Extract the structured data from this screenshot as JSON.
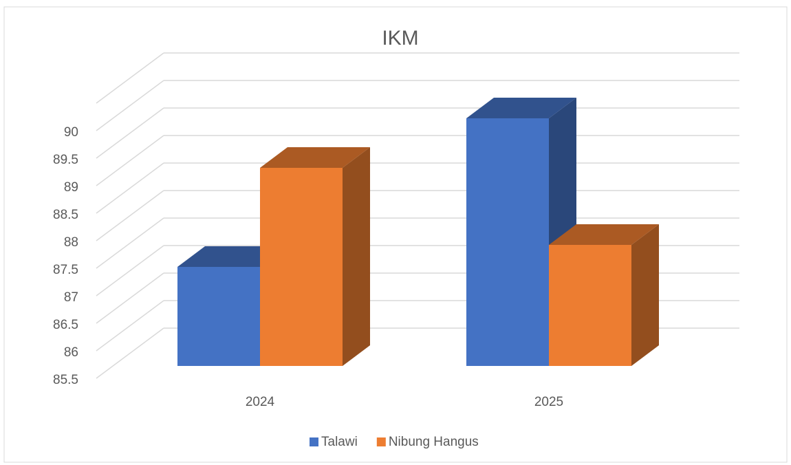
{
  "chart_data": {
    "type": "bar3d",
    "title": "IKM",
    "categories": [
      "2024",
      "2025"
    ],
    "series": [
      {
        "name": "Talawi",
        "color": "#4472c4",
        "values": [
          87.3,
          90.0
        ]
      },
      {
        "name": "Nibung Hangus",
        "color": "#ed7d31",
        "values": [
          89.1,
          87.7
        ]
      }
    ],
    "ylim": [
      85.5,
      90.5
    ],
    "yticks": [
      85.5,
      86,
      86.5,
      87,
      87.5,
      88,
      88.5,
      89,
      89.5,
      90
    ],
    "grid": true,
    "legend": "bottom"
  }
}
